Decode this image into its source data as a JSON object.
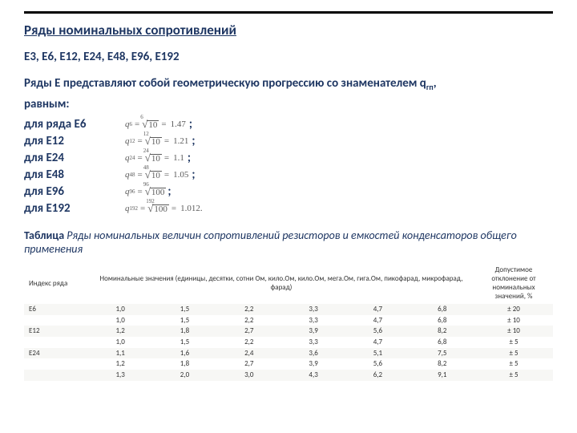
{
  "title": "Ряды номинальных сопротивлений",
  "series_list": "E3, E6, E12, E24, E48, E96, E192",
  "intro": "Ряды Е представляют собой геометрическую прогрессию со знаменателем q",
  "intro_sub": "гп",
  "intro_tail": ",",
  "intro_line2": "равным:",
  "formulas": [
    {
      "label": "для ряда Е6",
      "q_sub": "6",
      "deg": "6",
      "rad": "10",
      "res": "1.47",
      "after": ";"
    },
    {
      "label": "для Е12",
      "q_sub": "12",
      "deg": "12",
      "rad": "10",
      "res": "1.21",
      "after": ";"
    },
    {
      "label": "для Е24",
      "q_sub": "24",
      "deg": "24",
      "rad": "10",
      "res": "1.1",
      "after": ";"
    },
    {
      "label": "для Е48",
      "q_sub": "48",
      "deg": "48",
      "rad": "10",
      "res": "1.05",
      "after": ";"
    },
    {
      "label": "для Е96",
      "q_sub": "96",
      "deg": "96",
      "rad": "100",
      "res": "",
      "after": ";"
    },
    {
      "label": "для Е192",
      "q_sub": "192",
      "deg": "192",
      "rad": "100",
      "res": "1.012.",
      "after": ""
    }
  ],
  "table_caption_bold": "Таблица",
  "table_caption_rest": " Ряды номинальных величин сопротивлений резисторов и емкостей конденсаторов общего применения",
  "table": {
    "head_index": "Индекс ряда",
    "head_values": "Номинальные значения (единицы, десятки, сотни Ом, кило.Ом, кило.Ом, мега.Ом, гига.Ом, пикофарад, микрофарад, фарад)",
    "head_tol": "Допустимое отклонение от номинальных значений, %",
    "rows": [
      {
        "idx": "E6",
        "v": [
          "1,0",
          "1,5",
          "2,2",
          "3,3",
          "4,7",
          "6,8"
        ],
        "tol": "± 20"
      },
      {
        "idx": "",
        "v": [
          "1,0",
          "1,5",
          "2,2",
          "3,3",
          "4,7",
          "6,8"
        ],
        "tol": "± 10"
      },
      {
        "idx": "E12",
        "v": [
          "1,2",
          "1,8",
          "2,7",
          "3,9",
          "5,6",
          "8,2"
        ],
        "tol": "± 10"
      },
      {
        "idx": "",
        "v": [
          "1,0",
          "1,5",
          "2,2",
          "3,3",
          "4,7",
          "6,8"
        ],
        "tol": "± 5"
      },
      {
        "idx": "E24",
        "v": [
          "1,1",
          "1,6",
          "2,4",
          "3,6",
          "5,1",
          "7,5"
        ],
        "tol": "± 5"
      },
      {
        "idx": "",
        "v": [
          "1,2",
          "1,8",
          "2,7",
          "3,9",
          "5,6",
          "8,2"
        ],
        "tol": "± 5"
      },
      {
        "idx": "",
        "v": [
          "1,3",
          "2,0",
          "3,0",
          "4,3",
          "6,2",
          "9,1"
        ],
        "tol": "± 5"
      }
    ]
  }
}
